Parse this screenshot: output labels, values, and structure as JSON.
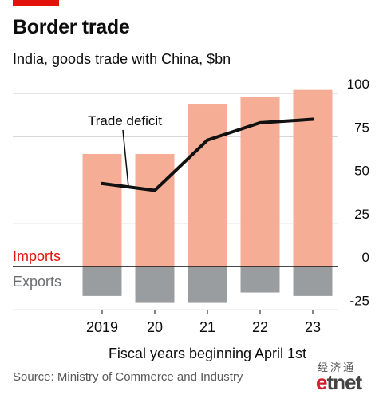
{
  "title": "Border trade",
  "subtitle": "India, goods trade with China, $bn",
  "source": "Source: Ministry of Commerce and Industry",
  "watermark": {
    "chinese": "经济通",
    "logo_a": "e",
    "logo_b": "tnet"
  },
  "colors": {
    "imports": "#f6ad95",
    "exports": "#999da0",
    "deficit": "#111111",
    "accent": "#e3120b",
    "imports_label": "#e3120b",
    "exports_label": "#6b6f72"
  },
  "chart_data": {
    "type": "bar",
    "categories": [
      "2019",
      "20",
      "21",
      "22",
      "23"
    ],
    "series": [
      {
        "name": "Imports",
        "values": [
          65,
          65,
          94,
          98,
          102
        ]
      },
      {
        "name": "Exports",
        "values": [
          -17,
          -21,
          -21,
          -15,
          -17
        ]
      },
      {
        "name": "Trade deficit",
        "type": "line",
        "values": [
          48,
          44,
          73,
          83,
          85
        ]
      }
    ],
    "y_ticks": [
      100,
      75,
      50,
      25,
      0,
      -25
    ],
    "ylim": [
      -27,
      104
    ],
    "xlabel": "Fiscal years beginning April 1st",
    "annotations": {
      "imports": "Imports",
      "exports": "Exports",
      "deficit": "Trade deficit"
    },
    "grid": true
  }
}
